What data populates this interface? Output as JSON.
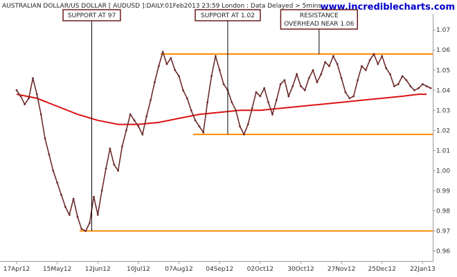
{
  "header": {
    "title": "AUSTRALIAN DOLLAR/US DOLLAR [ AUDUSD ]:DAILY:01Feb2013 23:59 London : Data Delayed > 5mins",
    "website": "www.incrediblecharts.com"
  },
  "colors": {
    "price": "#6b2a2a",
    "moving_average": "#dd1111",
    "support_resistance": "#ff8c00",
    "annotation_line": "#000000",
    "website": "#0000cc"
  },
  "chart_data": {
    "type": "line",
    "title": "AUSTRALIAN DOLLAR/US DOLLAR [ AUDUSD ]:DAILY:01Feb2013 23:59 London : Data Delayed > 5mins",
    "x_tick_labels": [
      "17Apr12",
      "15May12",
      "12Jun12",
      "10Jul12",
      "07Aug12",
      "04Sep12",
      "02Oct12",
      "30Oct12",
      "27Nov12",
      "25Dec12",
      "22Jan13"
    ],
    "y_tick_labels": [
      "0.96",
      "0.97",
      "0.98",
      "0.99",
      "1.00",
      "1.01",
      "1.02",
      "1.03",
      "1.04",
      "1.05",
      "1.06",
      "1.07"
    ],
    "ylim": [
      0.955,
      1.078
    ],
    "grid": false,
    "y_axis_side": "right",
    "x_range": [
      0,
      205
    ],
    "series": [
      {
        "role": "price",
        "x": [
          0,
          2,
          4,
          6,
          8,
          10,
          12,
          14,
          16,
          18,
          20,
          22,
          24,
          26,
          28,
          30,
          32,
          34,
          36,
          38,
          40,
          42,
          44,
          46,
          48,
          50,
          52,
          54,
          56,
          58,
          60,
          62,
          64,
          66,
          68,
          70,
          72,
          74,
          76,
          78,
          80,
          82,
          84,
          86,
          88,
          90,
          92,
          94,
          96,
          98,
          100,
          102,
          104,
          106,
          108,
          110,
          112,
          114,
          116,
          118,
          120,
          122,
          124,
          126,
          128,
          130,
          132,
          134,
          136,
          138,
          140,
          142,
          144,
          146,
          148,
          150,
          152,
          154,
          156,
          158,
          160,
          162,
          164,
          166,
          168,
          170,
          172,
          174,
          176,
          178,
          180,
          182,
          184,
          186,
          188,
          190,
          192,
          194,
          196,
          198,
          200,
          202,
          204
        ],
        "values": [
          1.04,
          1.037,
          1.033,
          1.036,
          1.046,
          1.038,
          1.028,
          1.016,
          1.008,
          1.0,
          0.994,
          0.988,
          0.982,
          0.978,
          0.986,
          0.977,
          0.971,
          0.97,
          0.974,
          0.987,
          0.978,
          0.99,
          1.001,
          1.011,
          1.003,
          1.0,
          1.012,
          1.02,
          1.028,
          1.025,
          1.022,
          1.018,
          1.027,
          1.035,
          1.044,
          1.052,
          1.059,
          1.053,
          1.056,
          1.05,
          1.047,
          1.04,
          1.036,
          1.03,
          1.025,
          1.022,
          1.019,
          1.034,
          1.047,
          1.057,
          1.05,
          1.043,
          1.04,
          1.034,
          1.03,
          1.022,
          1.018,
          1.023,
          1.031,
          1.039,
          1.037,
          1.041,
          1.034,
          1.028,
          1.035,
          1.043,
          1.045,
          1.037,
          1.042,
          1.048,
          1.042,
          1.04,
          1.046,
          1.05,
          1.044,
          1.048,
          1.054,
          1.052,
          1.057,
          1.053,
          1.046,
          1.039,
          1.036,
          1.037,
          1.045,
          1.052,
          1.05,
          1.055,
          1.058,
          1.053,
          1.057,
          1.051,
          1.048,
          1.042,
          1.043,
          1.047,
          1.045,
          1.042,
          1.04,
          1.041,
          1.043,
          1.042,
          1.041
        ]
      },
      {
        "role": "moving_average",
        "x": [
          0,
          10,
          20,
          30,
          40,
          50,
          60,
          70,
          80,
          90,
          100,
          110,
          120,
          130,
          140,
          150,
          160,
          170,
          180,
          190,
          198,
          202
        ],
        "values": [
          1.038,
          1.036,
          1.032,
          1.028,
          1.025,
          1.023,
          1.023,
          1.024,
          1.026,
          1.028,
          1.029,
          1.03,
          1.03,
          1.031,
          1.032,
          1.033,
          1.034,
          1.035,
          1.036,
          1.037,
          1.038,
          1.038
        ]
      }
    ],
    "horizontal_levels": [
      {
        "role": "support",
        "value": 0.97,
        "x_start": 31,
        "x_end": 205
      },
      {
        "role": "support",
        "value": 1.018,
        "x_start": 87,
        "x_end": 205
      },
      {
        "role": "resistance",
        "value": 1.058,
        "x_start": 71,
        "x_end": 205
      }
    ],
    "annotations": [
      {
        "text": "SUPPORT AT 97",
        "x": 37,
        "price": 0.97
      },
      {
        "text": "SUPPORT AT 1.02",
        "x": 104,
        "price": 1.018
      },
      {
        "text": "RESISTANCE\nOVERHEAD NEAR 1.06",
        "x": 149,
        "price": 1.058
      }
    ]
  }
}
